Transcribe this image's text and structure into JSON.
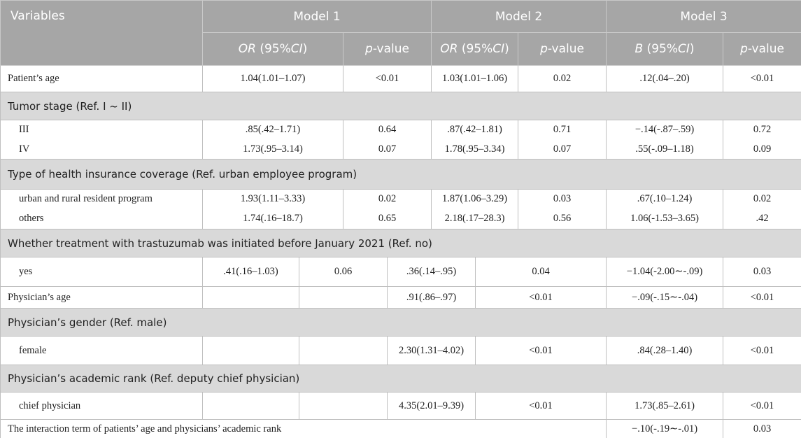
{
  "table": {
    "header": {
      "variables": "Variables",
      "models": [
        "Model 1",
        "Model 2",
        "Model 3"
      ],
      "columns": [
        [
          "OR",
          " (95%",
          "CI",
          ")"
        ],
        [
          "p",
          "-value"
        ],
        [
          "OR",
          " (95%",
          "CI",
          ")"
        ],
        [
          "p",
          "-value"
        ],
        [
          "B",
          " (95%",
          "CI",
          ")"
        ],
        [
          "p",
          "-value"
        ]
      ]
    },
    "rows": [
      {
        "label": "Patient’s age",
        "model1": [
          "1.04(1.01–1.07)",
          "<0.01"
        ],
        "model2": [
          "1.03(1.01–1.06)",
          "0.02"
        ],
        "model3": [
          ".12(.04–.20)",
          "<0.01"
        ]
      },
      {
        "section": "Tumor stage (Ref. I ~ II)"
      },
      {
        "label": "III",
        "model1": [
          ".85(.42–1.71)",
          "0.64"
        ],
        "model2": [
          ".87(.42–1.81)",
          "0.71"
        ],
        "model3": [
          "−.14(-.87–.59)",
          "0.72"
        ]
      },
      {
        "label": "IV",
        "model1": [
          "1.73(.95–3.14)",
          "0.07"
        ],
        "model2": [
          "1.78(.95–3.34)",
          "0.07"
        ],
        "model3": [
          ".55(-.09–1.18)",
          "0.09"
        ]
      },
      {
        "section": "Type of health insurance coverage (Ref. urban employee program)"
      },
      {
        "label": "urban and rural resident program",
        "model1": [
          "1.93(1.11–3.33)",
          "0.02"
        ],
        "model2": [
          "1.87(1.06–3.29)",
          "0.03"
        ],
        "model3": [
          ".67(.10–1.24)",
          "0.02"
        ]
      },
      {
        "label": "others",
        "model1": [
          "1.74(.16–18.7)",
          "0.65"
        ],
        "model2": [
          "2.18(.17–28.3)",
          "0.56"
        ],
        "model3": [
          "1.06(-1.53–3.65)",
          ".42"
        ]
      },
      {
        "section": "Whether treatment with trastuzumab was initiated before January 2021 (Ref. no)"
      },
      {
        "label": "yes",
        "model1": [
          ".41(.16–1.03)",
          "0.06"
        ],
        "model2": [
          ".36(.14–.95)",
          "0.04"
        ],
        "model3": [
          "−1.04(-2.00∼-.09)",
          "0.03"
        ]
      },
      {
        "label": "Physician’s age",
        "model2": [
          ".91(.86–.97)",
          "<0.01"
        ],
        "model3": [
          "−.09(-.15∼-.04)",
          "<0.01"
        ]
      },
      {
        "section": "Physician’s gender (Ref. male)"
      },
      {
        "label": "female",
        "model2": [
          "2.30(1.31–4.02)",
          "<0.01"
        ],
        "model3": [
          ".84(.28–1.40)",
          "<0.01"
        ]
      },
      {
        "section": "Physician’s academic rank (Ref. deputy chief physician)"
      },
      {
        "label": "chief physician",
        "model2": [
          "4.35(2.01–9.39)",
          "<0.01"
        ],
        "model3": [
          "1.73(.85–2.61)",
          "<0.01"
        ]
      },
      {
        "label": "The interaction term of patients’ age and physicians’ academic rank",
        "model3": [
          "−.10(-.19∼-.01)",
          "0.03"
        ]
      }
    ]
  }
}
